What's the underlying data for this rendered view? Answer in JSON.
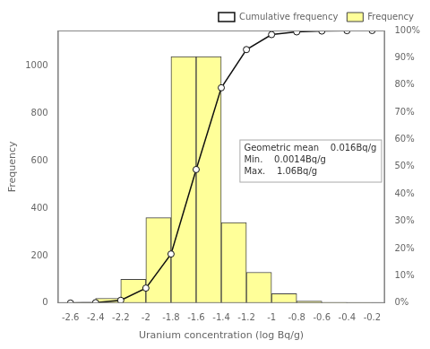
{
  "chart_data": {
    "type": "histogram",
    "xlabel": "Uranium concentration (log Bq/g)",
    "ylabel": "Frequency",
    "bins": [
      -2.6,
      -2.4,
      -2.2,
      -2.0,
      -1.8,
      -1.6,
      -1.4,
      -1.2,
      -1.0,
      -0.8,
      -0.6,
      -0.4,
      -0.2
    ],
    "series": [
      {
        "name": "Frequency",
        "type": "bar",
        "color": "#ffff99",
        "values": [
          3,
          20,
          100,
          360,
          1040,
          1040,
          340,
          130,
          40,
          8,
          3,
          1
        ]
      },
      {
        "name": "Cumulative frequency",
        "type": "line",
        "axis": "y2",
        "color": "#111111",
        "marker": "circle",
        "x": [
          -2.6,
          -2.4,
          -2.2,
          -2.0,
          -1.8,
          -1.6,
          -1.4,
          -1.2,
          -1.0,
          -0.8,
          -0.6,
          -0.4,
          -0.2
        ],
        "values": [
          0.0,
          0.15,
          1.0,
          5.5,
          18.0,
          49.0,
          79.0,
          93.0,
          98.5,
          99.5,
          99.8,
          99.95,
          100.0
        ]
      }
    ],
    "xlim": [
      -2.7,
      -0.1
    ],
    "xticks": [
      -2.6,
      -2.4,
      -2.2,
      -2.0,
      -1.8,
      -1.6,
      -1.4,
      -1.2,
      -1.0,
      -0.8,
      -0.6,
      -0.4,
      -0.2
    ],
    "ylim": [
      0,
      1150
    ],
    "yticks": [
      0,
      200,
      400,
      600,
      800,
      1000
    ],
    "y2lim": [
      0,
      100
    ],
    "y2ticks": [
      {
        "value": 0,
        "label": "0%"
      },
      {
        "value": 10,
        "label": "10%"
      },
      {
        "value": 20,
        "label": "20%"
      },
      {
        "value": 30,
        "label": "30%"
      },
      {
        "value": 40,
        "label": "40%"
      },
      {
        "value": 50,
        "label": "50%"
      },
      {
        "value": 60,
        "label": "60%"
      },
      {
        "value": 70,
        "label": "70%"
      },
      {
        "value": 80,
        "label": "80%"
      },
      {
        "value": 90,
        "label": "90%"
      },
      {
        "value": 100,
        "label": "100%"
      }
    ],
    "grid": false,
    "legend": "upper right",
    "annotations": [
      "Geometric mean    0.016Bq/g",
      "Min.    0.0014Bq/g",
      "Max.    1.06Bq/g"
    ]
  }
}
